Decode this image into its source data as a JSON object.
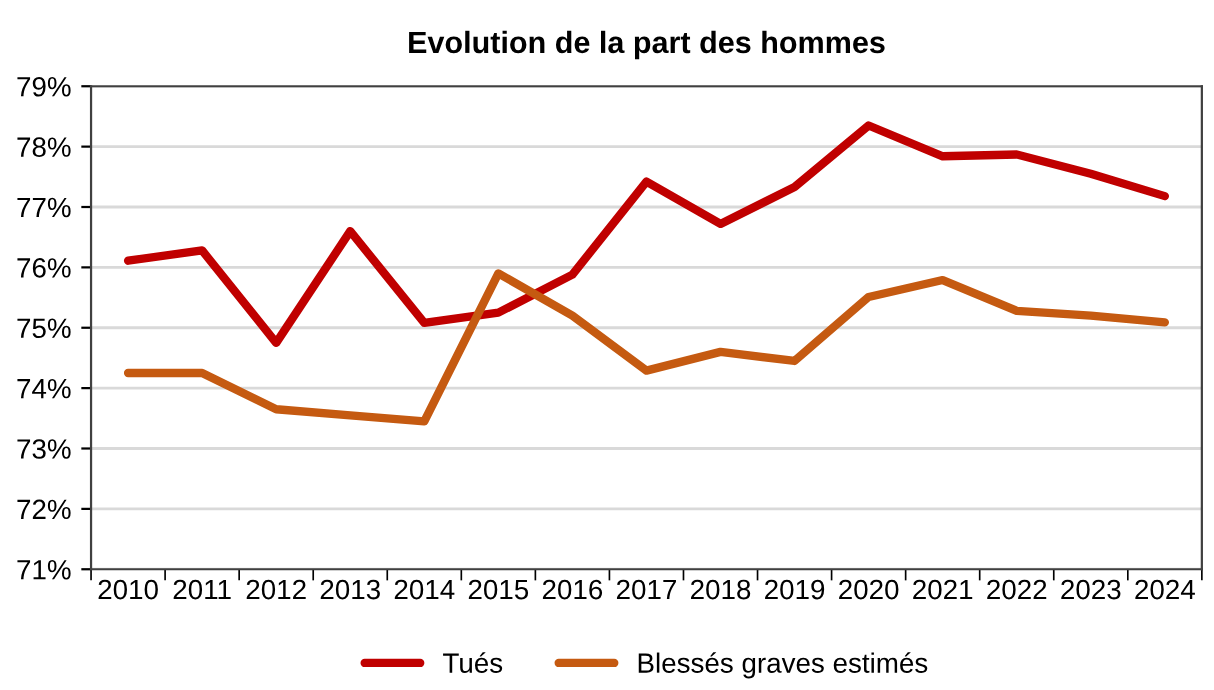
{
  "chart_data": {
    "type": "line",
    "title": "Evolution de la part des hommes",
    "categories": [
      "2010",
      "2011",
      "2012",
      "2013",
      "2014",
      "2015",
      "2016",
      "2017",
      "2018",
      "2019",
      "2020",
      "2021",
      "2022",
      "2023",
      "2024"
    ],
    "series": [
      {
        "name": "Tués",
        "color": "#c00000",
        "values": [
          76.11,
          76.28,
          74.75,
          76.6,
          75.08,
          75.25,
          75.88,
          77.42,
          76.72,
          77.33,
          78.35,
          77.84,
          77.87,
          77.55,
          77.18
        ]
      },
      {
        "name": "Blessés graves estimés",
        "color": "#c55a11",
        "values": [
          74.25,
          74.25,
          73.65,
          73.55,
          73.45,
          75.9,
          75.2,
          74.29,
          74.6,
          74.45,
          75.51,
          75.79,
          75.28,
          75.2,
          75.09
        ]
      }
    ],
    "ylim": [
      71,
      79
    ],
    "yticks": [
      {
        "value": 71,
        "label": "71%"
      },
      {
        "value": 72,
        "label": "72%"
      },
      {
        "value": 73,
        "label": "73%"
      },
      {
        "value": 74,
        "label": "74%"
      },
      {
        "value": 75,
        "label": "75%"
      },
      {
        "value": 76,
        "label": "76%"
      },
      {
        "value": 77,
        "label": "77%"
      },
      {
        "value": 78,
        "label": "78%"
      },
      {
        "value": 79,
        "label": "79%"
      }
    ],
    "grid": "y",
    "legend": "bottom",
    "marker": "none",
    "line_style": "solid"
  }
}
